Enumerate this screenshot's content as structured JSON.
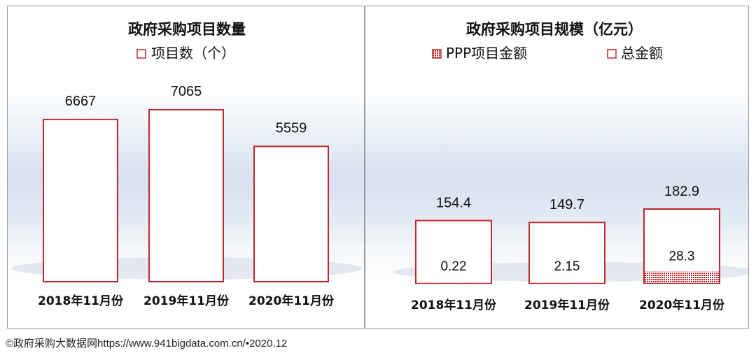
{
  "footer": {
    "text": "©政府采购大数据网https://www.941bigdata.com.cn/•2020.12"
  },
  "chart_data": [
    {
      "type": "bar",
      "title": "政府采购项目数量",
      "categories": [
        "2018年11月份",
        "2019年11月份",
        "2020年11月份"
      ],
      "series": [
        {
          "name": "项目数（个）",
          "values": [
            6667,
            7065,
            5559
          ],
          "style": "outline"
        }
      ],
      "ylim": [
        0,
        7500
      ],
      "grid": false,
      "legend": "top-center",
      "colors": {
        "outline": "#c0282d",
        "fill": "#ffffff"
      }
    },
    {
      "type": "bar",
      "title": "政府采购项目规模（亿元）",
      "categories": [
        "2018年11月份",
        "2019年11月份",
        "2020年11月份"
      ],
      "series": [
        {
          "name": "PPP项目金额",
          "values": [
            0.22,
            2.15,
            28.3
          ],
          "style": "hatched"
        },
        {
          "name": "总金额",
          "values": [
            154.4,
            149.7,
            182.9
          ],
          "style": "outline"
        }
      ],
      "ylim": [
        0,
        500
      ],
      "grid": false,
      "legend": "top",
      "colors": {
        "outline": "#c0282d",
        "hatch": "#c0282d",
        "fill": "#ffffff"
      }
    }
  ]
}
